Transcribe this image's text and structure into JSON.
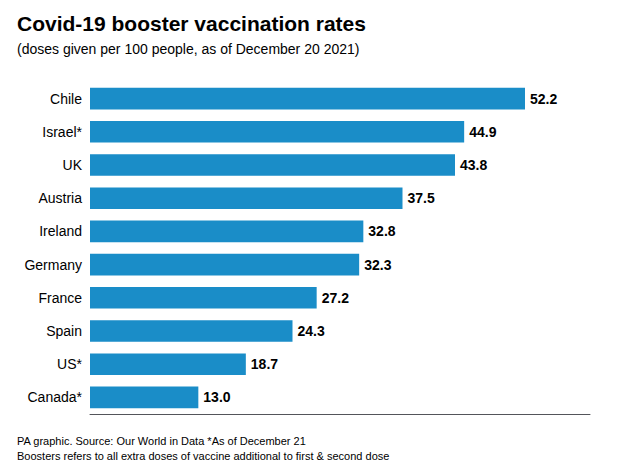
{
  "chart_data": {
    "type": "bar",
    "orientation": "horizontal",
    "title": "Covid-19 booster vaccination rates",
    "subtitle": "(doses given per 100 people, as of December 20 2021)",
    "footnote": "PA graphic. Source: Our World in Data *As of December 21\nBoosters refers to all extra doses of vaccine additional to first & second dose",
    "categories": [
      "Canada*",
      "US*",
      "Spain",
      "France",
      "Germany",
      "Ireland",
      "Austria",
      "UK",
      "Israel*",
      "Chile"
    ],
    "values": [
      13.0,
      18.7,
      24.3,
      27.2,
      32.3,
      32.8,
      37.5,
      43.8,
      44.9,
      52.2
    ],
    "value_labels": [
      "13.0",
      "18.7",
      "24.3",
      "27.2",
      "32.3",
      "32.8",
      "37.5",
      "43.8",
      "44.9",
      "52.2"
    ],
    "data_labels": true,
    "color": "#1a8dc8",
    "xlim": [
      0,
      60
    ],
    "tick_labels": "y",
    "grid": false,
    "legend": false
  }
}
